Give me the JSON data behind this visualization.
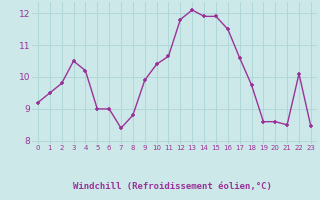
{
  "x": [
    0,
    1,
    2,
    3,
    4,
    5,
    6,
    7,
    8,
    9,
    10,
    11,
    12,
    13,
    14,
    15,
    16,
    17,
    18,
    19,
    20,
    21,
    22,
    23
  ],
  "y": [
    9.2,
    9.5,
    9.8,
    10.5,
    10.2,
    9.0,
    9.0,
    8.4,
    8.8,
    9.9,
    10.4,
    10.65,
    11.8,
    12.1,
    11.9,
    11.9,
    11.5,
    10.6,
    9.75,
    8.6,
    8.6,
    8.5,
    10.1,
    8.45
  ],
  "line_color": "#993399",
  "marker": "+",
  "bg_color": "#cce8e8",
  "grid_color": "#b0d8d8",
  "xlabel": "Windchill (Refroidissement éolien,°C)",
  "xlabel_color": "#993399",
  "tick_color": "#993399",
  "label_bg_color": "#9966aa",
  "ylim": [
    7.9,
    12.35
  ],
  "xlim": [
    -0.5,
    23.5
  ],
  "yticks": [
    8,
    9,
    10,
    11,
    12
  ],
  "xticks": [
    0,
    1,
    2,
    3,
    4,
    5,
    6,
    7,
    8,
    9,
    10,
    11,
    12,
    13,
    14,
    15,
    16,
    17,
    18,
    19,
    20,
    21,
    22,
    23
  ]
}
